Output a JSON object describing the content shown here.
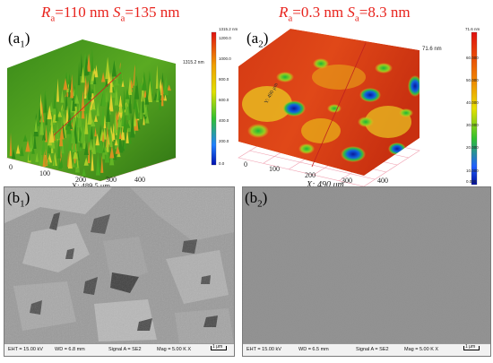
{
  "titles": {
    "left": {
      "ra_symbol": "R",
      "ra_sub": "a",
      "ra_value": "=110 nm ",
      "sa_symbol": "S",
      "sa_sub": "a",
      "sa_value": "=135 nm"
    },
    "right": {
      "ra_symbol": "R",
      "ra_sub": "a",
      "ra_value": "=0.3 nm ",
      "sa_symbol": "S",
      "sa_sub": "a",
      "sa_value": "=8.3 nm"
    }
  },
  "panels": {
    "a1": {
      "label": "(a",
      "sub": "1",
      "close": ")"
    },
    "a2": {
      "label": "(a",
      "sub": "2",
      "close": ")"
    },
    "b1": {
      "label": "(b",
      "sub": "1",
      "close": ")"
    },
    "b2": {
      "label": "(b",
      "sub": "2",
      "close": ")"
    }
  },
  "plot_a1": {
    "max_label": "1315.2 nm",
    "colorbar_ticks": [
      "1315.2 nm",
      "1200.0",
      "1000.0",
      "800.0",
      "600.0",
      "400.0",
      "200.0",
      "0.0"
    ],
    "x_ticks": [
      "0",
      "100",
      "200",
      "300",
      "400"
    ],
    "x_axis_label": "X: 489.5 μm"
  },
  "plot_a2": {
    "max_label": "71.6 nm",
    "colorbar_ticks": [
      "71.6 nm",
      "60.000",
      "50.000",
      "40.000",
      "30.000",
      "20.000",
      "10.000",
      "0.000"
    ],
    "x_ticks": [
      "0",
      "100",
      "200",
      "300",
      "400"
    ],
    "x_axis_label": "X: 490 μm",
    "y_axis_text": "Y: 490 μm"
  },
  "sem_b1": {
    "eht": "EHT = 15.00 kV",
    "wd": "WD = 6.8 mm",
    "signal": "Signal A = SE2",
    "mag": "Mag = 5.00 K X",
    "scale": "1 μm"
  },
  "sem_b2": {
    "eht": "EHT = 15.00 kV",
    "wd": "WD = 6.5 mm",
    "signal": "Signal A = SE2",
    "mag": "Mag = 5.00 K X",
    "scale": "1 μm"
  }
}
